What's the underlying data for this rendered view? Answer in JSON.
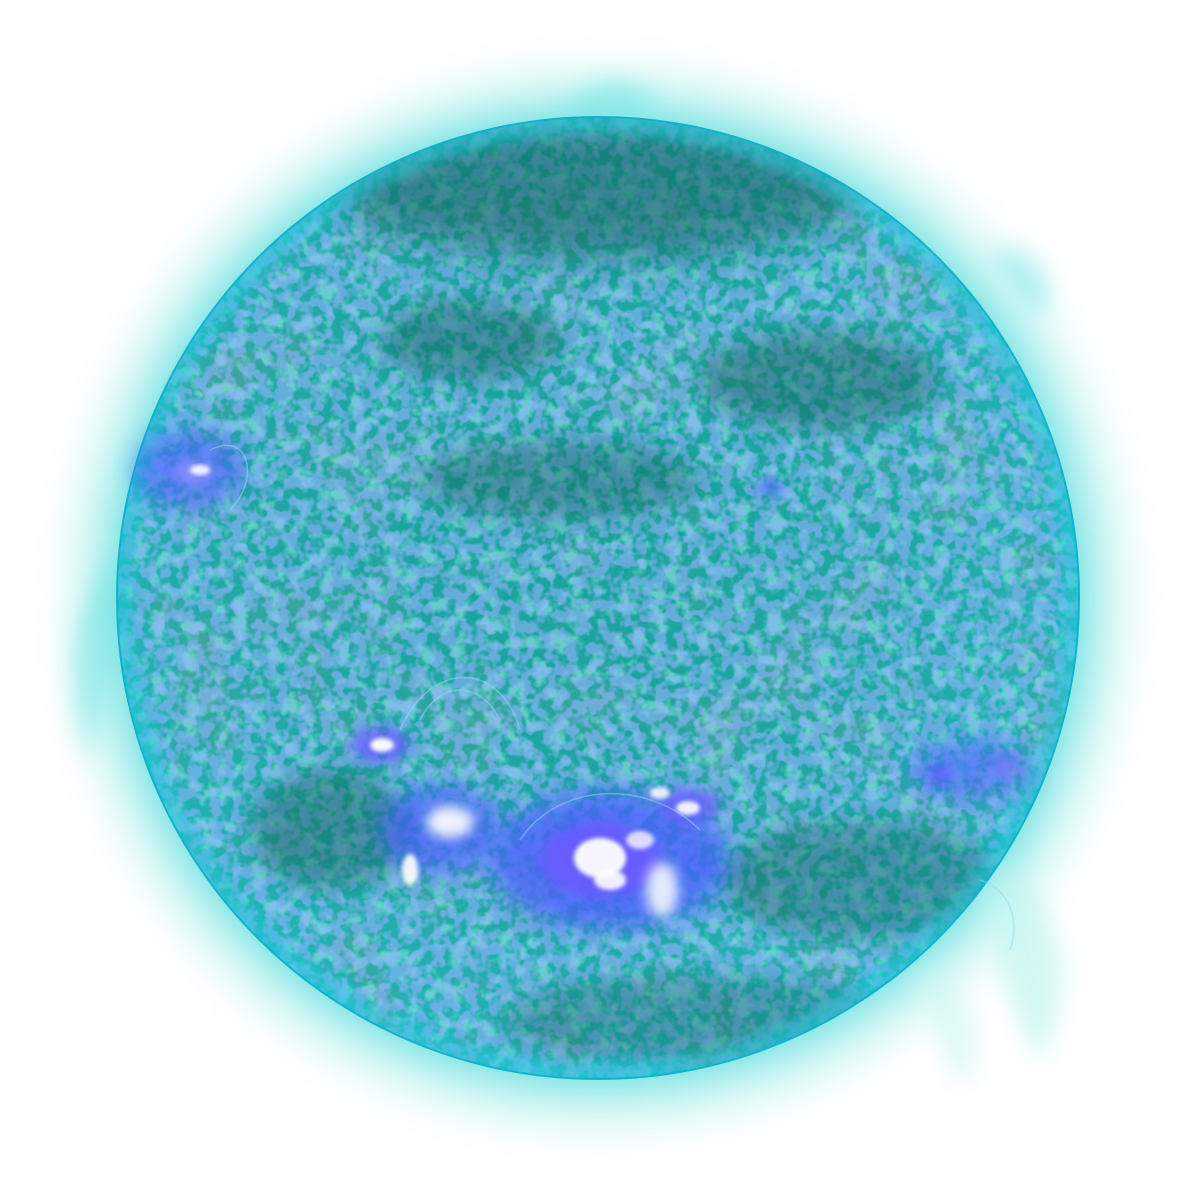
{
  "image": {
    "subject": "solar-disk",
    "colors": {
      "background": "#ffffff",
      "corona_outer": "#bff4ef",
      "corona_mid": "#6fe4e3",
      "corona_inner": "#22c7d6",
      "limb": "#0fb4c9",
      "disk_base": "#1fa7a4",
      "disk_light": "#39bdb8",
      "disk_dark": "#0f6f66",
      "active_blue": "#4a5dff",
      "active_violet": "#6a5cff",
      "flare_white": "#ffffff"
    },
    "features": [
      "corona",
      "solar-disk",
      "active-region",
      "coronal-loops",
      "prominence"
    ]
  }
}
